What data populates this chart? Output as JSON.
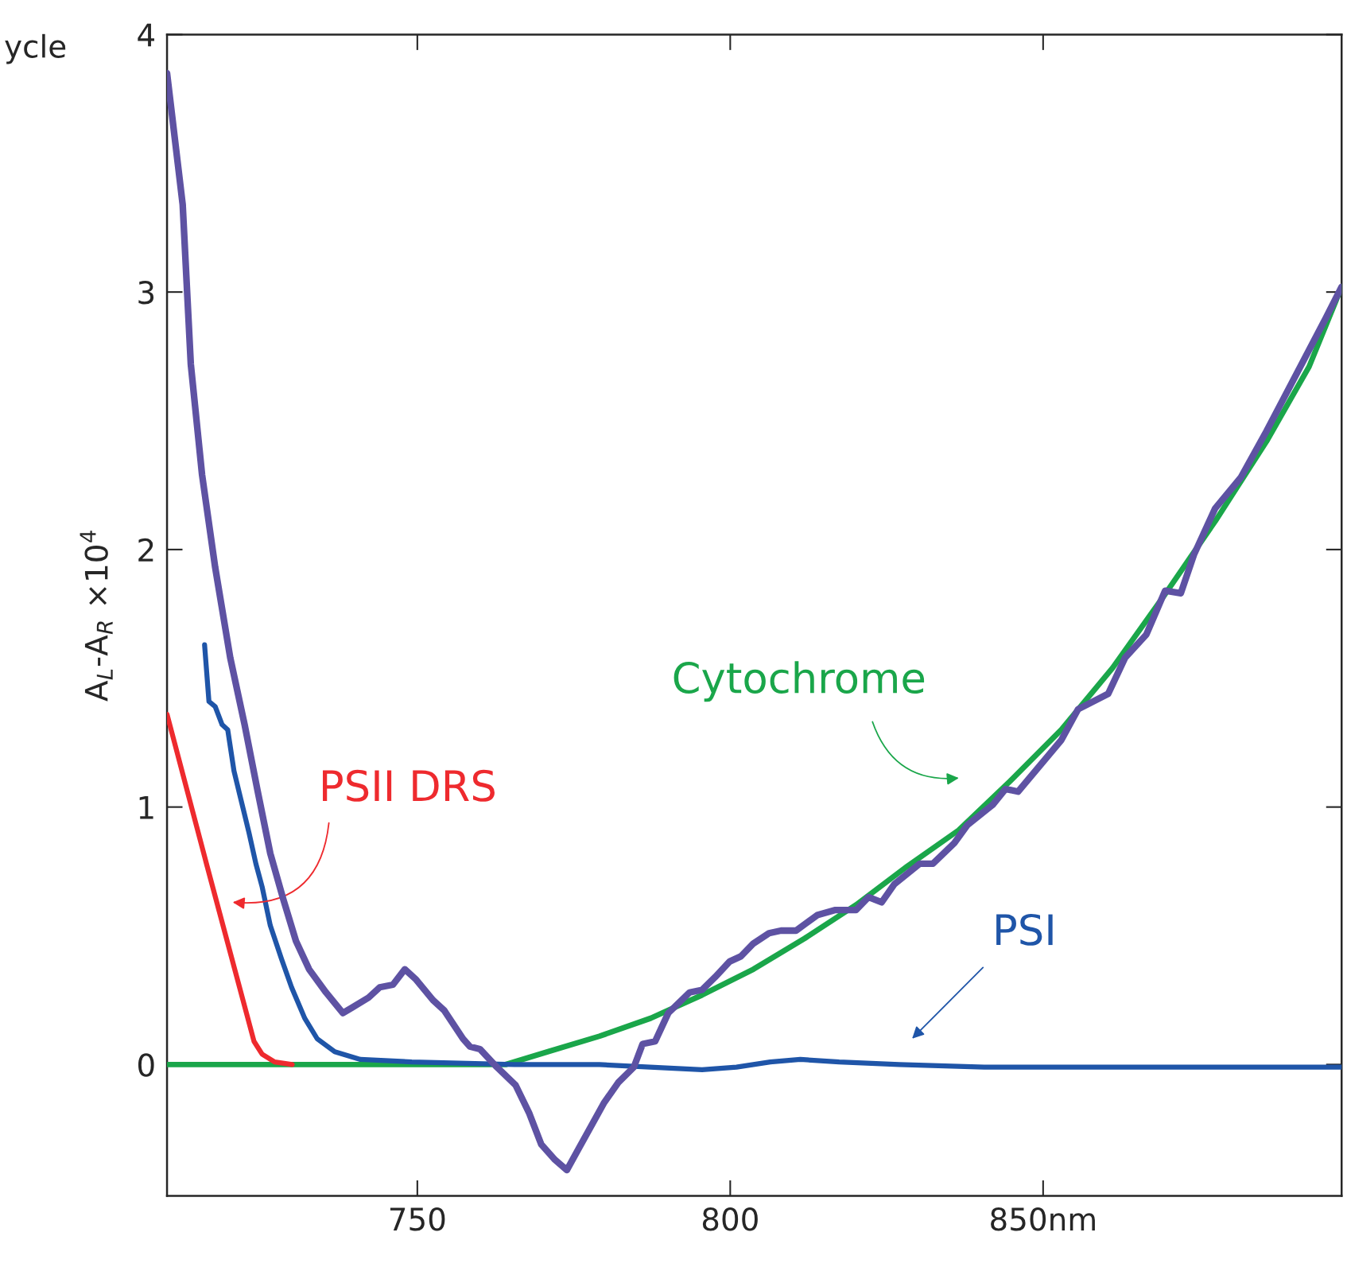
{
  "chart_data": {
    "type": "line",
    "ylabel": "A$_{L}$-A$_{R}$ ×10$^{4}$",
    "xlim": [
      710,
      897.7
    ],
    "ylim": [
      -0.51,
      4
    ],
    "xticks": [
      750,
      800,
      {
        "value": 850,
        "label": "850nm"
      }
    ],
    "yticks": [
      0,
      1,
      2,
      3,
      4
    ],
    "grid": false,
    "legend": false,
    "line_style": "solid",
    "marker": "none",
    "annotations": [
      "ycle"
    ],
    "series": [
      {
        "color": "#5e52a3",
        "x": [
          710,
          712.5,
          713.8,
          715.6,
          717.7,
          720.1,
          722.4,
          724.5,
          726.5,
          728.6,
          730.6,
          732.7,
          735.4,
          738.1,
          739.5,
          742.2,
          744.0,
          746.1,
          748.0,
          749.8,
          752.5,
          754.3,
          757.3,
          758.4,
          760.0,
          762.7,
          765.7,
          767.9,
          769.8,
          772.0,
          773.9,
          775.7,
          779.8,
          782.1,
          784.6,
          786.0,
          788.0,
          790.1,
          793.5,
          795.5,
          797.6,
          799.9,
          801.7,
          803.7,
          806.2,
          808.1,
          810.5,
          813.9,
          816.7,
          820.1,
          822.1,
          824.2,
          826.2,
          830.3,
          832.4,
          835.8,
          837.9,
          842.0,
          844.0,
          846.0,
          852.9,
          855.6,
          860.4,
          863.1,
          866.5,
          869.5,
          872.0,
          874.1,
          877.5,
          881.6,
          885.7,
          891.1,
          895.2,
          897.7
        ],
        "values": [
          3.85,
          3.34,
          2.72,
          2.29,
          1.93,
          1.58,
          1.32,
          1.06,
          0.82,
          0.64,
          0.48,
          0.37,
          0.28,
          0.2,
          0.22,
          0.26,
          0.3,
          0.31,
          0.37,
          0.33,
          0.25,
          0.21,
          0.1,
          0.07,
          0.06,
          -0.01,
          -0.08,
          -0.19,
          -0.31,
          -0.37,
          -0.41,
          -0.33,
          -0.15,
          -0.07,
          -0.01,
          0.08,
          0.09,
          0.2,
          0.28,
          0.29,
          0.34,
          0.4,
          0.42,
          0.47,
          0.51,
          0.52,
          0.52,
          0.58,
          0.6,
          0.6,
          0.65,
          0.63,
          0.7,
          0.78,
          0.78,
          0.86,
          0.93,
          1.01,
          1.07,
          1.06,
          1.26,
          1.38,
          1.44,
          1.58,
          1.67,
          1.84,
          1.83,
          1.98,
          2.16,
          2.28,
          2.46,
          2.71,
          2.9,
          3.02
        ]
      },
      {
        "name": "Cytochrome",
        "color": "#1aa64a",
        "x": [
          710,
          764.1,
          770.9,
          779.1,
          787.3,
          795.5,
          803.7,
          811.9,
          820.1,
          828.3,
          836.5,
          844.7,
          852.9,
          861.1,
          869.3,
          877.5,
          885.7,
          892.5,
          897.7
        ],
        "values": [
          0,
          0,
          0.05,
          0.11,
          0.18,
          0.27,
          0.37,
          0.49,
          0.62,
          0.77,
          0.91,
          1.1,
          1.3,
          1.54,
          1.82,
          2.11,
          2.42,
          2.71,
          3.02
        ]
      },
      {
        "name": "PSI",
        "color": "#1f55a8",
        "x": [
          716.0,
          716.7,
          717.7,
          718.8,
          719.7,
          720.7,
          721.7,
          723.1,
          724.2,
          725.2,
          726.5,
          728.3,
          729.9,
          732.0,
          734.0,
          736.8,
          740.9,
          749.1,
          765.5,
          779.1,
          795.5,
          801.0,
          806.4,
          811.2,
          817.4,
          827.0,
          840.6,
          897.7
        ],
        "values": [
          1.63,
          1.41,
          1.39,
          1.32,
          1.3,
          1.14,
          1.04,
          0.9,
          0.78,
          0.69,
          0.54,
          0.41,
          0.3,
          0.18,
          0.1,
          0.05,
          0.02,
          0.01,
          0,
          0,
          -0.02,
          -0.01,
          0.01,
          0.02,
          0.01,
          0,
          -0.01,
          -0.01
        ]
      },
      {
        "name": "PSII DRS",
        "color": "#ee2a2e",
        "x": [
          710,
          716.3,
          723.9,
          725.2,
          727.2,
          730
        ],
        "values": [
          1.36,
          0.78,
          0.09,
          0.04,
          0.01,
          0
        ]
      }
    ]
  }
}
